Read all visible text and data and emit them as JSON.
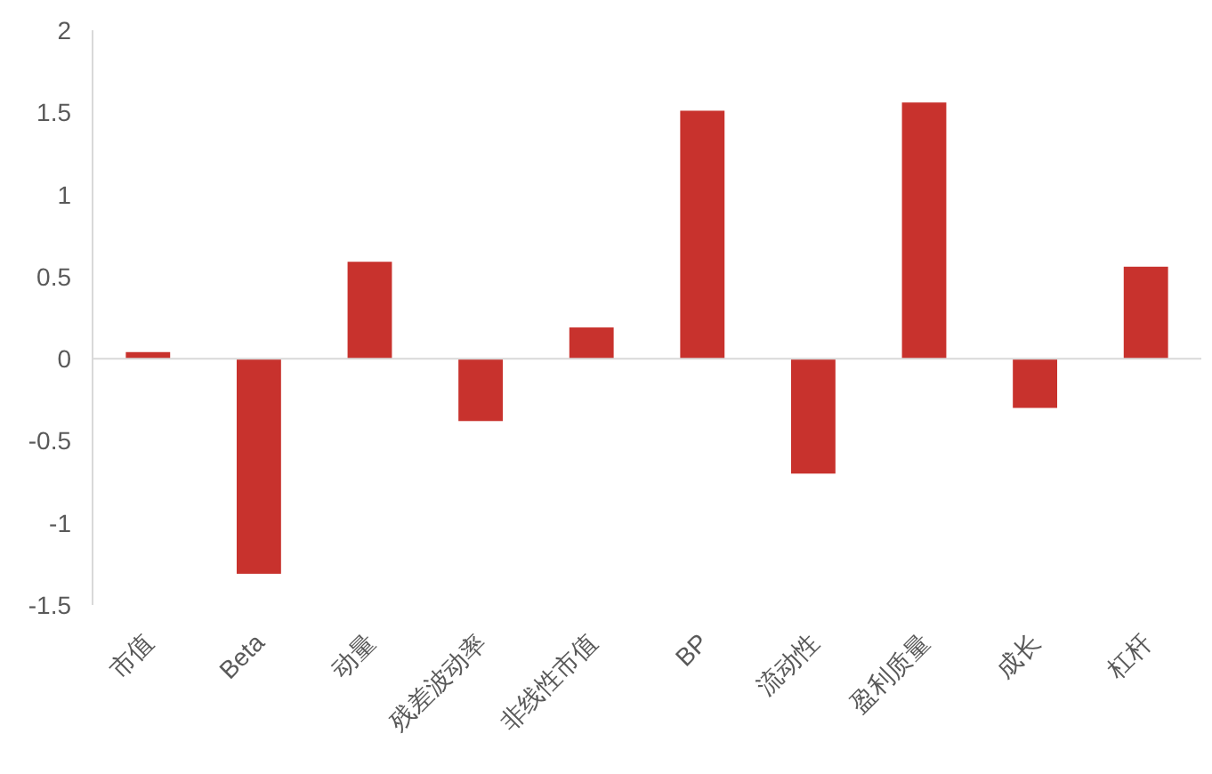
{
  "chart_data": {
    "type": "bar",
    "categories": [
      "市值",
      "Beta",
      "动量",
      "残差波动率",
      "非线性市值",
      "BP",
      "流动性",
      "盈利质量",
      "成长",
      "杠杆"
    ],
    "values": [
      0.04,
      -1.31,
      0.59,
      -0.38,
      0.19,
      1.51,
      -0.7,
      1.56,
      -0.3,
      0.56
    ],
    "color": "#c8322d",
    "ylim": [
      -1.5,
      2
    ],
    "yticks": [
      -1.5,
      -1,
      -0.5,
      0,
      0.5,
      1,
      1.5,
      2
    ]
  }
}
